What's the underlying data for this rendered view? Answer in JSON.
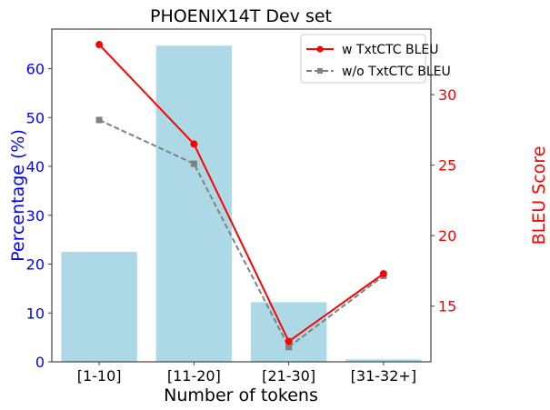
{
  "chart_data": {
    "type": "bar+line",
    "title": "PHOENIX14T Dev set",
    "xlabel": "Number of tokens",
    "ylabel": "Percentage (%)",
    "ylabel_right": "BLEU Score",
    "categories": [
      "[1-10]",
      "[11-20]",
      "[21-30]",
      "[31-32+]"
    ],
    "bars": {
      "values": [
        22.5,
        64.7,
        12.2,
        0.5
      ],
      "color": "#add8e6",
      "axis": "left"
    },
    "series": [
      {
        "name": "w TxtCTC BLEU",
        "values": [
          33.55,
          26.5,
          12.5,
          17.3
        ],
        "color": "#ff0000",
        "style": "solid",
        "marker": "circle",
        "axis": "right"
      },
      {
        "name": "w/o TxtCTC BLEU",
        "values": [
          28.2,
          25.1,
          12.1,
          17.15
        ],
        "color": "#808080",
        "style": "dashed",
        "marker": "square",
        "axis": "right"
      }
    ],
    "ylim": [
      0,
      68.1
    ],
    "ylim_right": [
      11.05,
      34.65
    ],
    "yticks": [
      0,
      10,
      20,
      30,
      40,
      50,
      60
    ],
    "yticks_right": [
      15,
      20,
      25,
      30
    ],
    "left_axis_color": "#0000ff",
    "right_axis_color": "#ff0000",
    "grid": false,
    "legend": "top-right"
  }
}
